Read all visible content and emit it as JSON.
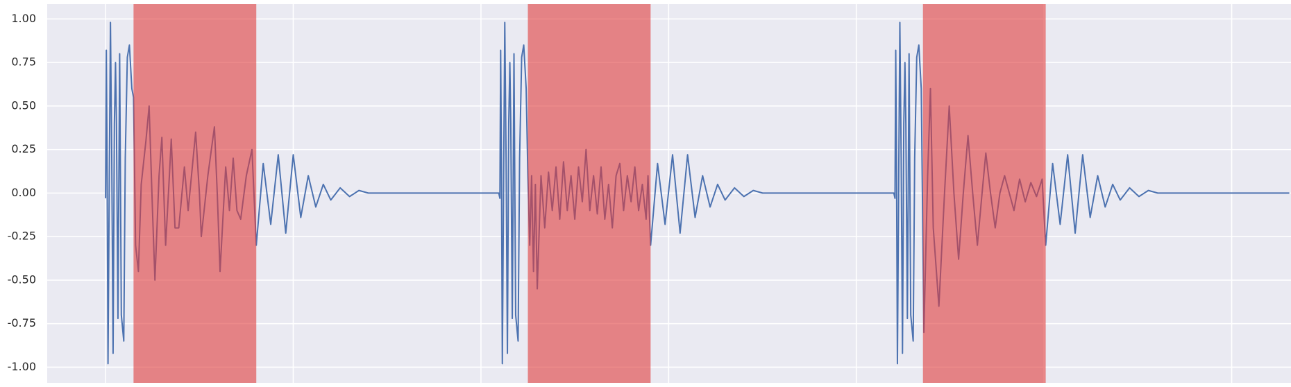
{
  "chart_data": {
    "type": "line",
    "color": "#4c72b0",
    "span_color": "#e03c3c",
    "span_alpha": 0.6,
    "background": "#eaeaf2",
    "grid": true,
    "xlim": [
      -311,
      6316
    ],
    "xticks": [
      0,
      1000,
      2000,
      3000,
      4000,
      5000,
      6000
    ],
    "ylim": [
      -1.09,
      1.085
    ],
    "yticks": [
      {
        "value": -1,
        "label": "-1.00"
      },
      {
        "value": -0.75,
        "label": "-0.75"
      },
      {
        "value": -0.5,
        "label": "-0.50"
      },
      {
        "value": -0.25,
        "label": "-0.25"
      },
      {
        "value": 0,
        "label": "0.00"
      },
      {
        "value": 0.25,
        "label": "0.25"
      },
      {
        "value": 0.5,
        "label": "0.50"
      },
      {
        "value": 0.75,
        "label": "0.75"
      },
      {
        "value": 1,
        "label": "1.00"
      }
    ],
    "spans": [
      [
        149,
        803
      ],
      [
        2250,
        2904
      ],
      [
        4355,
        5009
      ]
    ],
    "x": [
      0,
      4,
      8,
      13,
      20,
      26,
      33,
      40,
      47,
      53,
      58,
      66,
      71,
      75,
      84,
      97,
      105,
      116,
      127,
      140,
      149,
      160,
      175,
      190,
      215,
      232,
      250,
      263,
      285,
      300,
      320,
      340,
      350,
      370,
      390,
      420,
      440,
      480,
      500,
      510,
      545,
      580,
      595,
      610,
      640,
      660,
      680,
      700,
      720,
      750,
      780,
      803,
      840,
      880,
      920,
      960,
      1000,
      1040,
      1080,
      1120,
      1160,
      1200,
      1250,
      1300,
      1350,
      1400,
      1700,
      2095,
      2101,
      2105,
      2109,
      2114,
      2121,
      2127,
      2134,
      2141,
      2148,
      2154,
      2159,
      2167,
      2172,
      2176,
      2185,
      2198,
      2206,
      2217,
      2228,
      2241,
      2250,
      2260,
      2270,
      2280,
      2290,
      2300,
      2320,
      2340,
      2360,
      2380,
      2400,
      2420,
      2440,
      2460,
      2480,
      2500,
      2520,
      2540,
      2560,
      2580,
      2600,
      2620,
      2640,
      2660,
      2680,
      2700,
      2720,
      2740,
      2760,
      2780,
      2800,
      2820,
      2840,
      2860,
      2880,
      2890,
      2904,
      2941,
      2981,
      3021,
      3061,
      3101,
      3141,
      3181,
      3221,
      3261,
      3301,
      3351,
      3401,
      3451,
      3501,
      3801,
      4200,
      4206,
      4210,
      4214,
      4219,
      4226,
      4232,
      4239,
      4246,
      4253,
      4259,
      4264,
      4272,
      4277,
      4281,
      4290,
      4303,
      4311,
      4322,
      4333,
      4346,
      4360,
      4380,
      4395,
      4410,
      4440,
      4470,
      4495,
      4520,
      4545,
      4570,
      4595,
      4620,
      4645,
      4670,
      4690,
      4715,
      4740,
      4765,
      4790,
      4815,
      4840,
      4870,
      4900,
      4930,
      4960,
      4990,
      5009,
      5046,
      5086,
      5126,
      5166,
      5206,
      5246,
      5286,
      5326,
      5366,
      5406,
      5456,
      5506,
      5556,
      5606,
      6307
    ],
    "values": [
      -0.03,
      0.82,
      0.2,
      -0.98,
      0.1,
      0.98,
      0.2,
      -0.92,
      0.4,
      0.75,
      0.4,
      -0.72,
      0.1,
      0.8,
      -0.7,
      -0.85,
      0.2,
      0.78,
      0.85,
      0.6,
      0.55,
      -0.3,
      -0.45,
      0.05,
      0.3,
      0.5,
      -0.1,
      -0.5,
      0.1,
      0.32,
      -0.3,
      0.1,
      0.31,
      -0.2,
      -0.2,
      0.15,
      -0.1,
      0.35,
      0.0,
      -0.25,
      0.1,
      0.38,
      0.0,
      -0.45,
      0.15,
      -0.1,
      0.2,
      -0.1,
      -0.15,
      0.1,
      0.25,
      -0.3,
      0.17,
      -0.18,
      0.22,
      -0.23,
      0.22,
      -0.14,
      0.1,
      -0.08,
      0.05,
      -0.04,
      0.03,
      -0.02,
      0.015,
      0,
      0,
      0,
      -0.03,
      0.82,
      0.2,
      -0.98,
      0.1,
      0.98,
      0.2,
      -0.92,
      0.4,
      0.75,
      0.4,
      -0.72,
      0.1,
      0.8,
      -0.7,
      -0.85,
      0.2,
      0.78,
      0.85,
      0.6,
      0.1,
      -0.3,
      0.1,
      -0.45,
      0.05,
      -0.55,
      0.1,
      -0.2,
      0.12,
      -0.1,
      0.15,
      -0.15,
      0.18,
      -0.1,
      0.1,
      -0.15,
      0.15,
      -0.05,
      0.25,
      -0.1,
      0.1,
      -0.12,
      0.15,
      -0.15,
      0.05,
      -0.2,
      0.1,
      0.17,
      -0.1,
      0.1,
      -0.05,
      0.15,
      -0.1,
      0.05,
      -0.15,
      0.1,
      -0.3,
      0.17,
      -0.18,
      0.22,
      -0.23,
      0.22,
      -0.14,
      0.1,
      -0.08,
      0.05,
      -0.04,
      0.03,
      -0.02,
      0.015,
      0,
      0,
      0,
      -0.03,
      0.82,
      0.2,
      -0.98,
      0.1,
      0.98,
      0.2,
      -0.92,
      0.4,
      0.75,
      0.4,
      -0.72,
      0.1,
      0.8,
      -0.7,
      -0.85,
      0.2,
      0.78,
      0.85,
      0.6,
      -0.8,
      0.1,
      0.6,
      -0.2,
      -0.65,
      0.0,
      0.5,
      0.0,
      -0.38,
      0.0,
      0.33,
      0.0,
      -0.3,
      0.0,
      0.23,
      0.0,
      -0.2,
      0.0,
      0.1,
      0.0,
      -0.1,
      0.08,
      -0.05,
      0.06,
      -0.02,
      0.08,
      -0.3,
      0.17,
      -0.18,
      0.22,
      -0.23,
      0.22,
      -0.14,
      0.1,
      -0.08,
      0.05,
      -0.04,
      0.03,
      -0.02,
      0.015,
      0,
      0
    ]
  }
}
